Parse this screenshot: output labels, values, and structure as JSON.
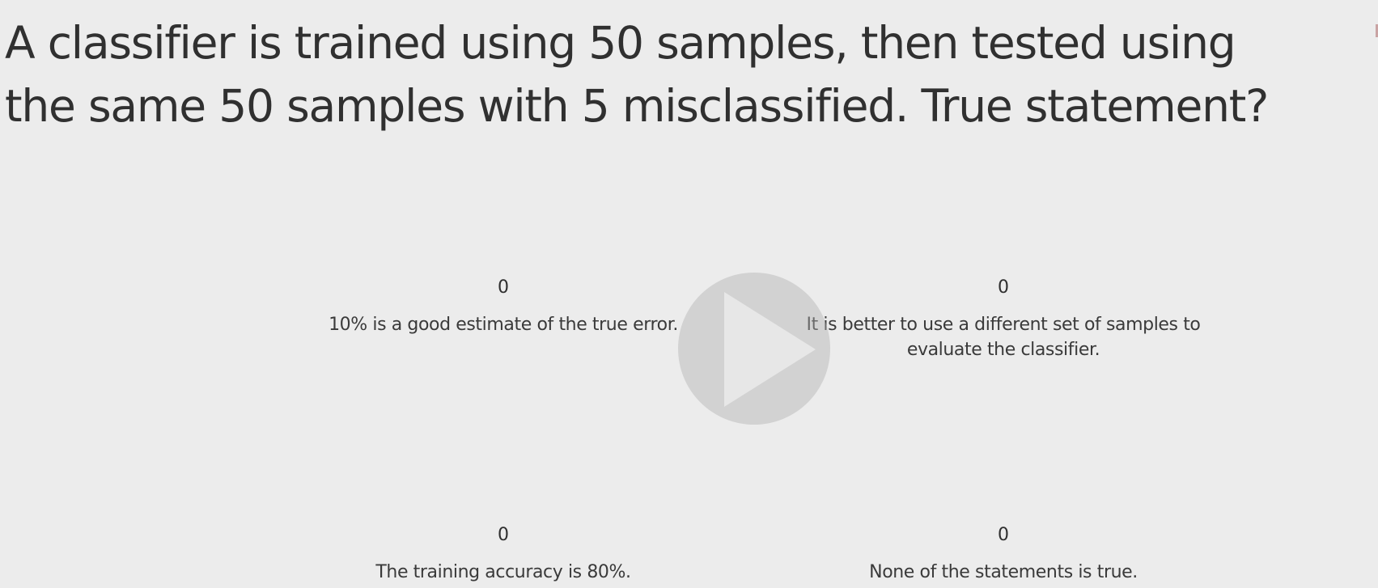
{
  "question": {
    "line1": "A classifier is trained using 50 samples, then tested using",
    "line2": "the same 50 samples with 5 misclassified. True statement?"
  },
  "options": [
    {
      "count": "0",
      "text": "10% is a good estimate of the true error."
    },
    {
      "count": "0",
      "text": "It is better to use a different set of samples to evaluate the classifier."
    },
    {
      "count": "0",
      "text": "The training accuracy is 80%."
    },
    {
      "count": "0",
      "text": "None of the statements is true."
    }
  ],
  "overlay": {
    "icon": "play-icon"
  }
}
